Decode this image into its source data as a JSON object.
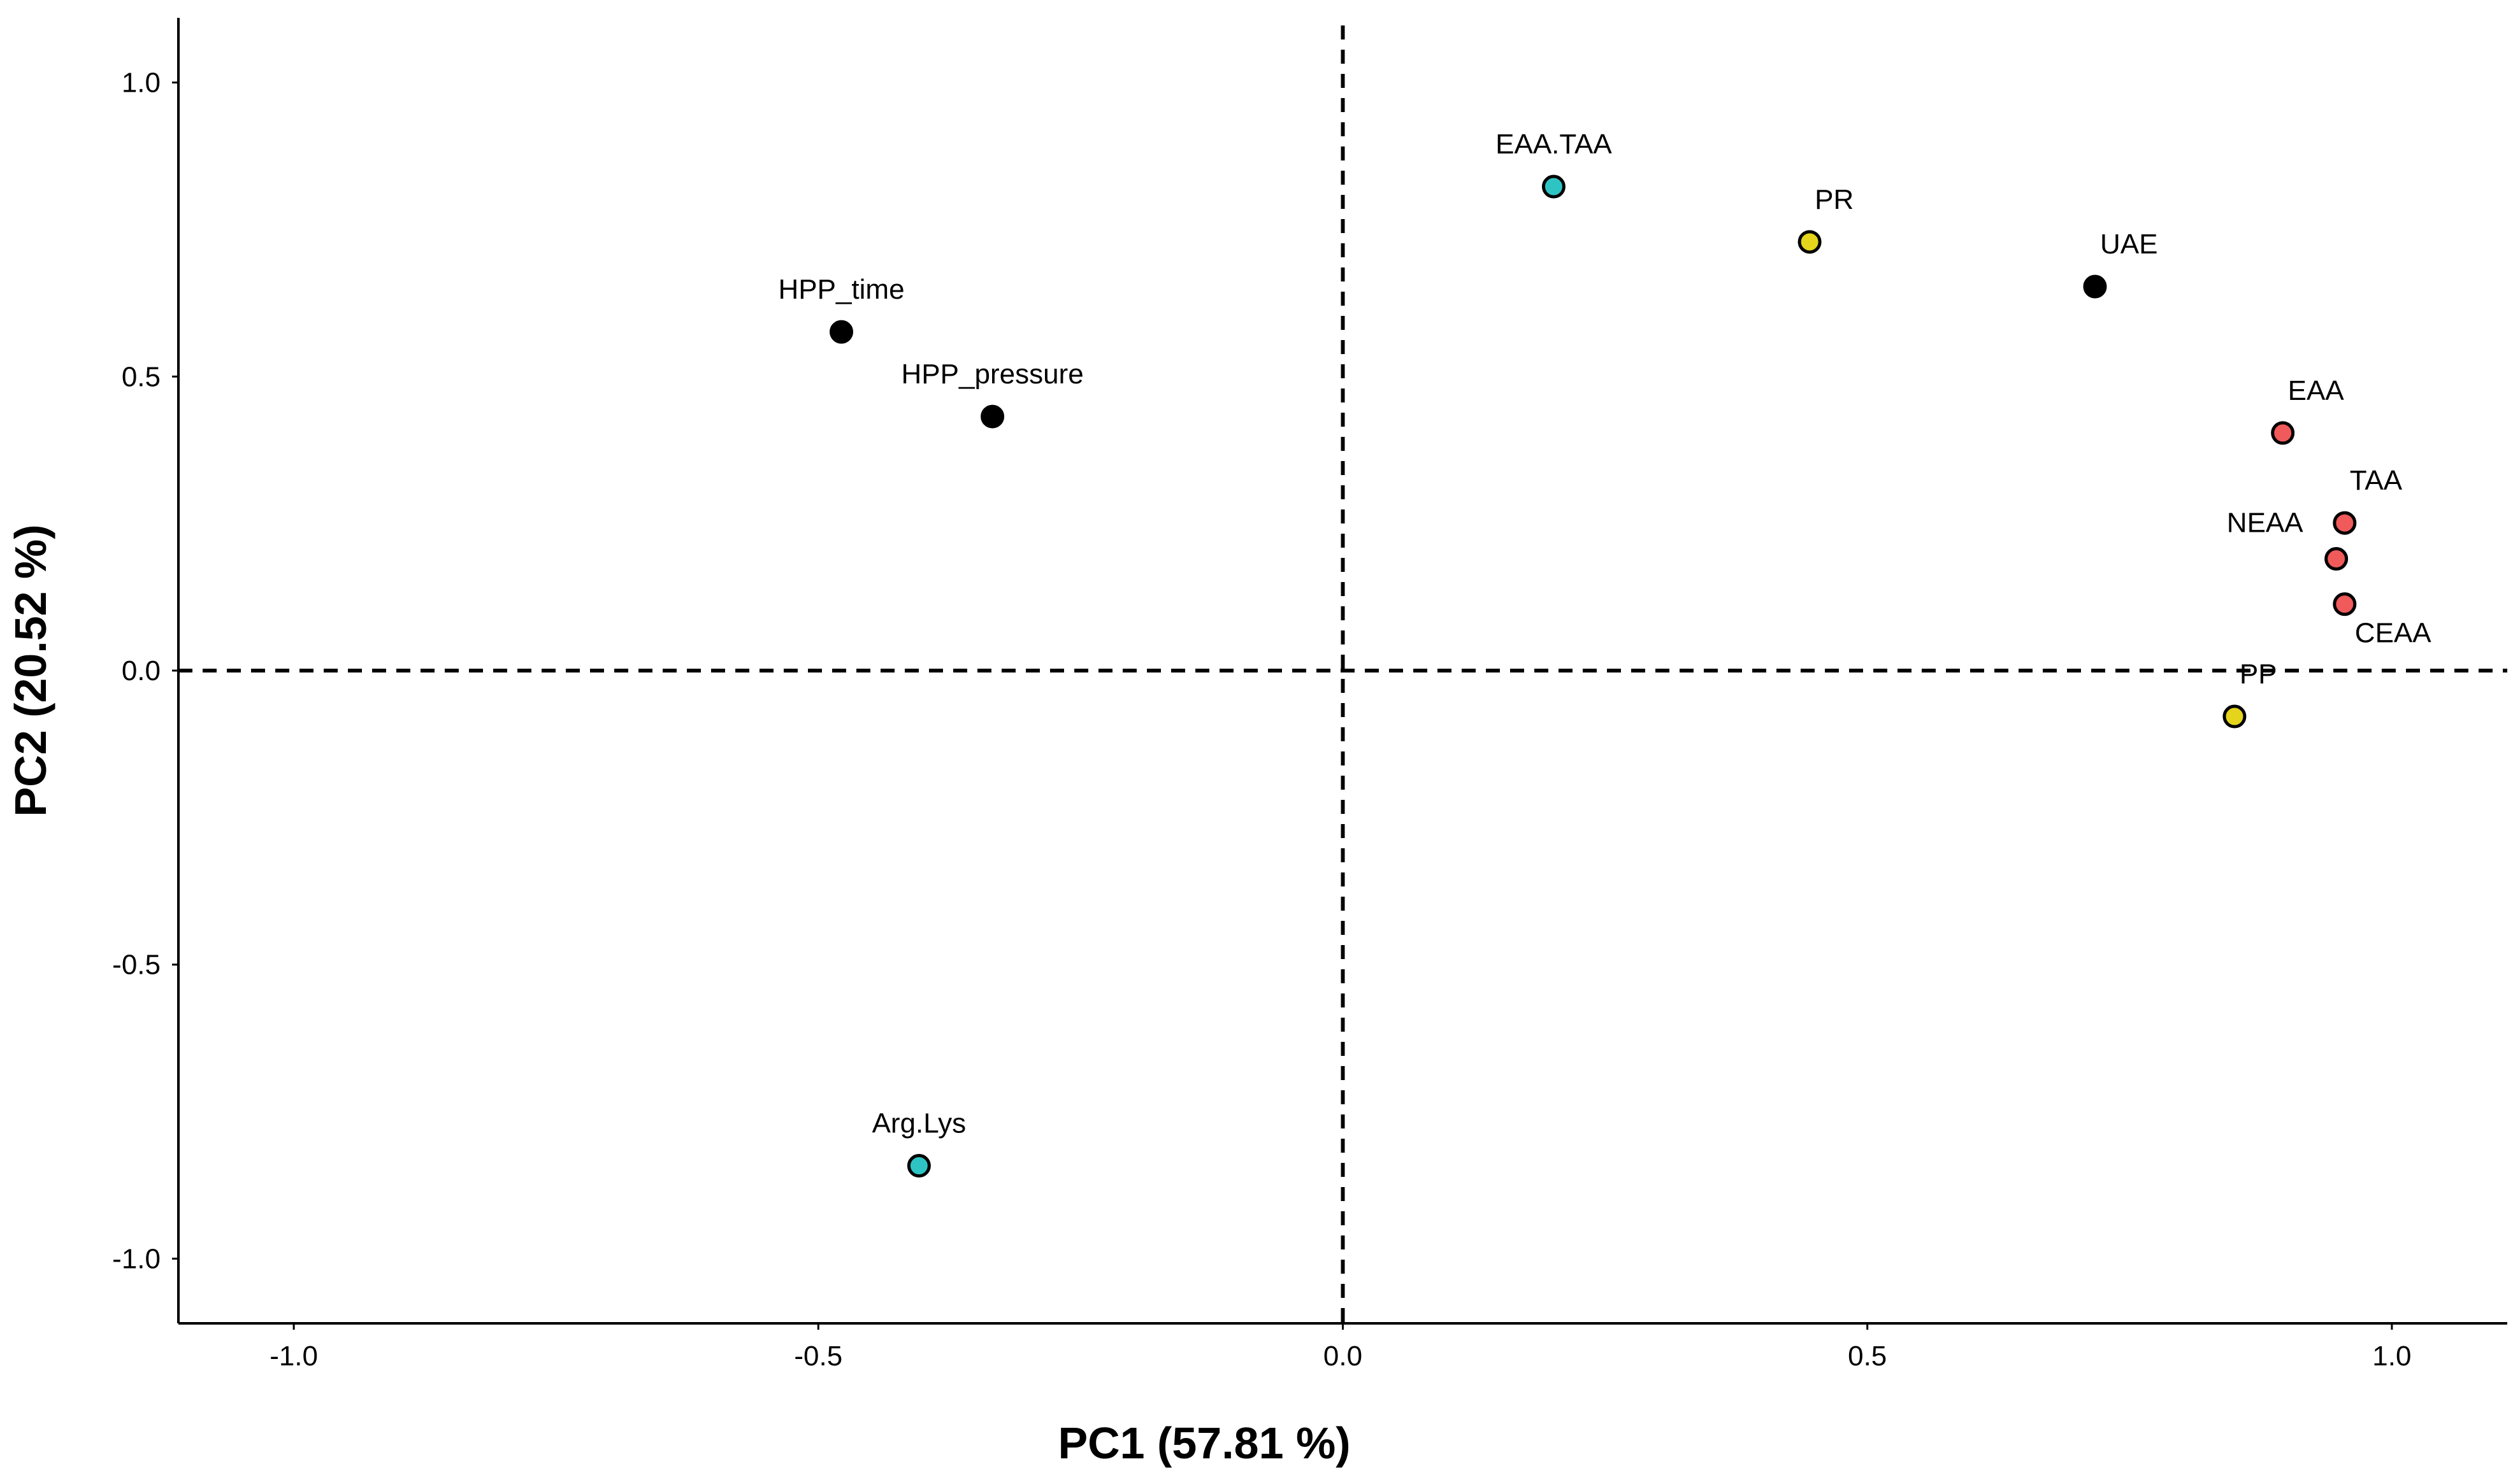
{
  "chart_data": {
    "type": "scatter",
    "title": "",
    "xlabel": "PC1 (57.81 %)",
    "ylabel": "PC2 (20.52 %)",
    "xlim": [
      -1.11,
      1.11
    ],
    "ylim": [
      -1.11,
      1.11
    ],
    "xticks": [
      {
        "value": -1.0,
        "label": "-1.0"
      },
      {
        "value": -0.5,
        "label": "-0.5"
      },
      {
        "value": 0.0,
        "label": "0.0"
      },
      {
        "value": 0.5,
        "label": "0.5"
      },
      {
        "value": 1.0,
        "label": "1.0"
      }
    ],
    "yticks": [
      {
        "value": -1.0,
        "label": "-1.0"
      },
      {
        "value": -0.5,
        "label": "-0.5"
      },
      {
        "value": 0.0,
        "label": "0.0"
      },
      {
        "value": 0.5,
        "label": "0.5"
      },
      {
        "value": 1.0,
        "label": "1.0"
      }
    ],
    "reference_lines": {
      "x": 0.0,
      "y": 0.0,
      "style": "dashed"
    },
    "grid": false,
    "colors": {
      "black": "#000000",
      "cyan": "#2EC4C4",
      "yellow": "#E4D51C",
      "red": "#F05A5A"
    },
    "points": [
      {
        "label": "HPP_time",
        "x": -0.478,
        "y": 0.576,
        "color": "black",
        "label_pos": "above"
      },
      {
        "label": "HPP_pressure",
        "x": -0.334,
        "y": 0.432,
        "color": "black",
        "label_pos": "above"
      },
      {
        "label": "Arg.Lys",
        "x": -0.404,
        "y": -0.842,
        "color": "cyan",
        "label_pos": "above"
      },
      {
        "label": "EAA.TAA",
        "x": 0.201,
        "y": 0.823,
        "color": "cyan",
        "label_pos": "above"
      },
      {
        "label": "PR",
        "x": 0.445,
        "y": 0.729,
        "color": "yellow",
        "label_pos": "above-right"
      },
      {
        "label": "UAE",
        "x": 0.717,
        "y": 0.653,
        "color": "black",
        "label_pos": "above-right"
      },
      {
        "label": "EAA",
        "x": 0.896,
        "y": 0.404,
        "color": "red",
        "label_pos": "above-right"
      },
      {
        "label": "TAA",
        "x": 0.955,
        "y": 0.251,
        "color": "red",
        "label_pos": "above-right"
      },
      {
        "label": "NEAA",
        "x": 0.947,
        "y": 0.19,
        "color": "red",
        "label_pos": "left"
      },
      {
        "label": "CEAA",
        "x": 0.955,
        "y": 0.113,
        "color": "red",
        "label_pos": "below-right"
      },
      {
        "label": "PP",
        "x": 0.85,
        "y": -0.078,
        "color": "yellow",
        "label_pos": "above-right"
      }
    ]
  }
}
